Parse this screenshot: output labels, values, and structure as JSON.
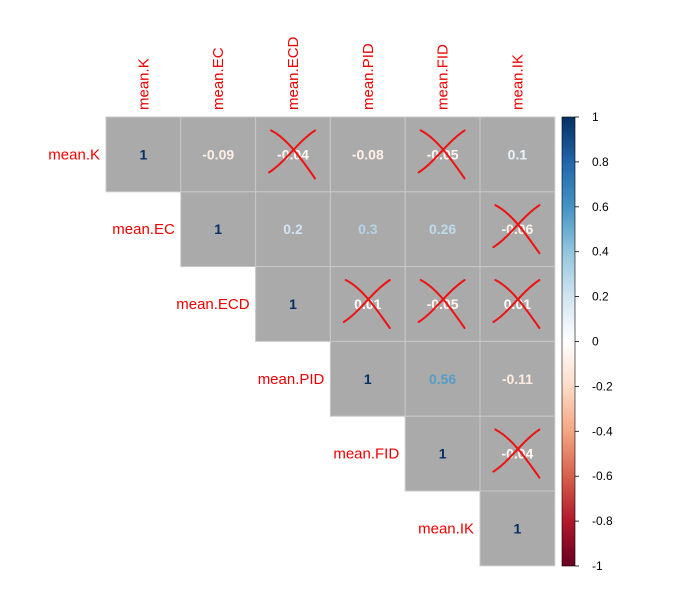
{
  "chart_data": {
    "type": "heatmap",
    "variables": [
      "mean.K",
      "mean.EC",
      "mean.ECD",
      "mean.PID",
      "mean.FID",
      "mean.IK"
    ],
    "matrix": [
      [
        1,
        -0.09,
        -0.04,
        -0.08,
        -0.05,
        0.1
      ],
      [
        null,
        1,
        0.2,
        0.3,
        0.26,
        -0.06
      ],
      [
        null,
        null,
        1,
        0.01,
        -0.05,
        0.01
      ],
      [
        null,
        null,
        null,
        1,
        0.56,
        -0.11
      ],
      [
        null,
        null,
        null,
        null,
        1,
        -0.04
      ],
      [
        null,
        null,
        null,
        null,
        null,
        1
      ]
    ],
    "cell_labels": [
      [
        "1",
        "-0.09",
        "-0.04",
        "-0.08",
        "-0.05",
        "0.1"
      ],
      [
        null,
        "1",
        "0.2",
        "0.3",
        "0.26",
        "-0.06"
      ],
      [
        null,
        null,
        "1",
        "0.01",
        "-0.05",
        "0.01"
      ],
      [
        null,
        null,
        null,
        "1",
        "0.56",
        "-0.11"
      ],
      [
        null,
        null,
        null,
        null,
        "1",
        "-0.04"
      ],
      [
        null,
        null,
        null,
        null,
        null,
        "1"
      ]
    ],
    "crossed_out": [
      [
        0,
        2
      ],
      [
        0,
        4
      ],
      [
        1,
        5
      ],
      [
        2,
        3
      ],
      [
        2,
        4
      ],
      [
        2,
        5
      ],
      [
        4,
        5
      ]
    ],
    "cell_fill": "#aaaaaa",
    "label_color": "#ee0000",
    "colorbar": {
      "ticks": [
        1,
        0.8,
        0.6,
        0.4,
        0.2,
        0,
        -0.2,
        -0.4,
        -0.6,
        -0.8,
        -1
      ],
      "tick_labels": [
        "1",
        "0.8",
        "0.6",
        "0.4",
        "0.2",
        "0",
        "-0.2",
        "-0.4",
        "-0.6",
        "-0.8",
        "-1"
      ],
      "range": [
        -1,
        1
      ],
      "colors": [
        "#67001f",
        "#b2182b",
        "#d6604d",
        "#f4a582",
        "#fddbc7",
        "#ffffff",
        "#d1e5f0",
        "#92c5de",
        "#4393c3",
        "#2166ac",
        "#053061"
      ]
    }
  }
}
